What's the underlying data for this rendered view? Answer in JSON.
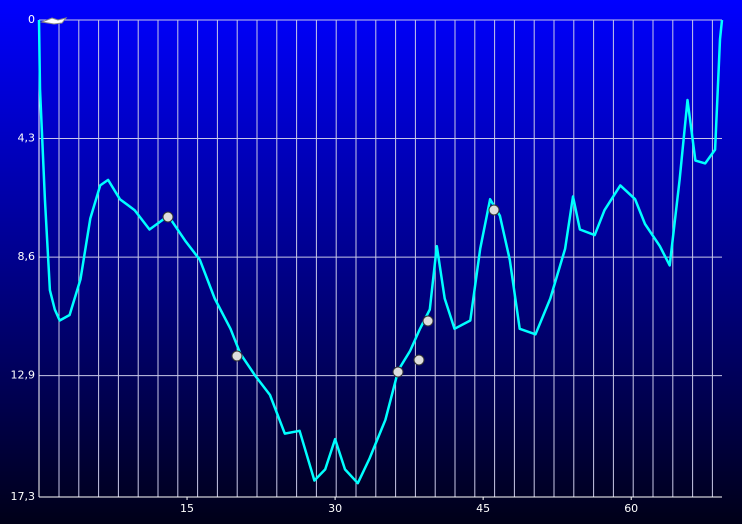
{
  "chart_data": {
    "type": "line",
    "x": [
      0,
      0.1,
      0.6,
      1.1,
      1.6,
      2.1,
      3.1,
      4.2,
      5.2,
      6.2,
      7.0,
      8.2,
      9.7,
      11.2,
      13.1,
      14.8,
      16.3,
      17.8,
      19.4,
      20.4,
      21.9,
      23.4,
      24.9,
      26.4,
      27.9,
      29.0,
      30.0,
      31.0,
      32.3,
      33.5,
      35.1,
      36.4,
      37.6,
      38.6,
      39.6,
      40.3,
      41.1,
      42.1,
      43.7,
      44.7,
      45.7,
      46.7,
      47.7,
      48.7,
      50.3,
      51.8,
      53.3,
      54.1,
      54.8,
      56.3,
      57.3,
      58.9,
      60.4,
      61.4,
      62.9,
      63.9,
      64.9,
      65.7,
      66.5,
      67.5,
      68.5,
      69.0,
      69.2
    ],
    "series": [
      {
        "color": "#00ffff",
        "values": [
          0,
          2.5,
          6.5,
          9.8,
          10.5,
          10.9,
          10.7,
          9.4,
          7.2,
          6.0,
          5.8,
          6.5,
          6.9,
          7.6,
          7.1,
          8.0,
          8.7,
          10.1,
          11.2,
          12.1,
          12.9,
          13.6,
          15.0,
          14.9,
          16.7,
          16.3,
          15.2,
          16.3,
          16.8,
          15.9,
          14.5,
          12.7,
          12.0,
          11.2,
          10.5,
          8.2,
          10.1,
          11.2,
          10.9,
          8.3,
          6.5,
          7.1,
          8.7,
          11.2,
          11.4,
          10.1,
          8.3,
          6.4,
          7.6,
          7.8,
          6.9,
          6.0,
          6.5,
          7.4,
          8.2,
          8.9,
          5.8,
          2.9,
          5.1,
          5.2,
          4.7,
          0.7,
          0
        ]
      }
    ],
    "xlim": [
      0,
      69.2
    ],
    "xticks": [
      15,
      30,
      45,
      60
    ],
    "ylim": [
      0,
      17.3
    ],
    "yticks": [
      0,
      {
        "value": 4.3,
        "label": "4,3"
      },
      {
        "value": 8.6,
        "label": "8,6"
      },
      {
        "value": 12.9,
        "label": "12,9"
      },
      {
        "value": 17.3,
        "label": "17,3"
      }
    ],
    "y_inverted": true,
    "grid": true
  }
}
